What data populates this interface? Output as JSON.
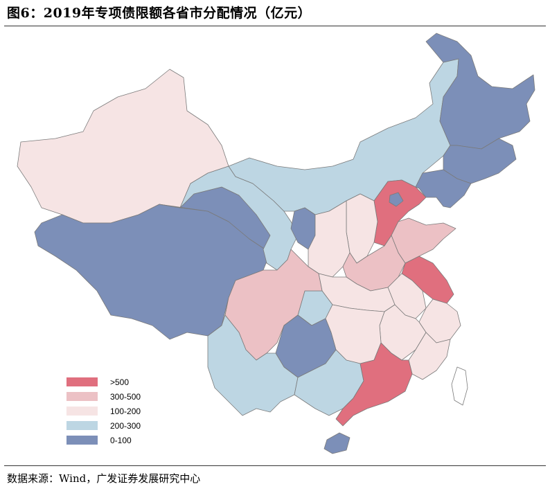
{
  "title": "图6：2019年专项债限额各省市分配情况（亿元）",
  "source": "数据来源：Wind，广发证券发展研究中心",
  "colors": {
    "gt500": "#e06f7e",
    "c300_500": "#ecc1c5",
    "c100_200": "#f6e4e4",
    "c200_300": "#bdd6e3",
    "c0_100": "#7c8fb8"
  },
  "legend": [
    {
      "label": ">500",
      "color": "#e06f7e"
    },
    {
      "label": "300-500",
      "color": "#ecc1c5"
    },
    {
      "label": "100-200",
      "color": "#f6e4e4"
    },
    {
      "label": "200-300",
      "color": "#bdd6e3"
    },
    {
      "label": "0-100",
      "color": "#7c8fb8"
    }
  ]
}
